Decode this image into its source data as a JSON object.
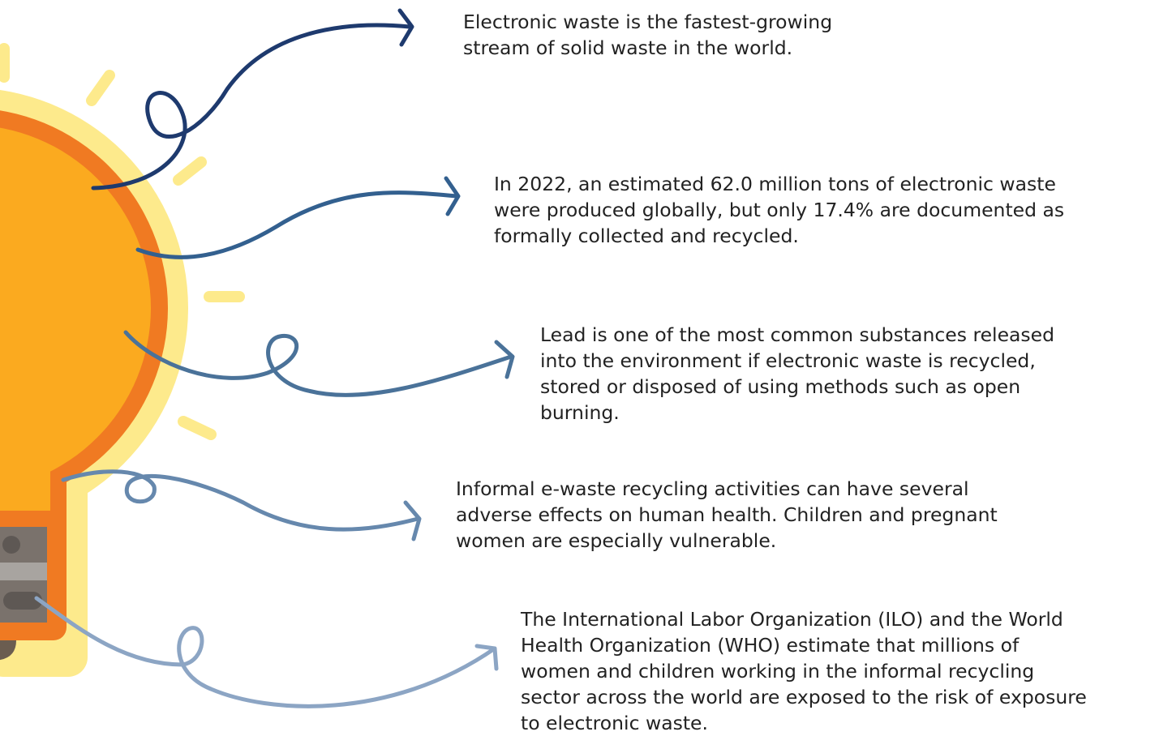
{
  "facts": [
    {
      "lines": [
        "Electronic waste is the fastest-growing",
        "stream of solid waste in the world."
      ]
    },
    {
      "lines": [
        "In 2022, an estimated 62.0 million tons of electronic waste",
        "were produced globally, but only 17.4% are documented as",
        "formally collected and recycled."
      ]
    },
    {
      "lines": [
        "Lead is one of the most common substances released",
        "into the environment if electronic waste is recycled,",
        "stored or disposed of using methods such as open",
        "burning."
      ]
    },
    {
      "lines": [
        "Informal e-waste recycling activities can have several",
        "adverse effects on human health. Children and pregnant",
        "women are especially vulnerable."
      ]
    },
    {
      "lines": [
        "The International Labor Organization (ILO) and the World",
        "Health Organization (WHO) estimate that millions of",
        "women and children working in the informal recycling",
        "sector across the world are exposed to the risk of exposure",
        "to electronic waste."
      ]
    }
  ]
}
